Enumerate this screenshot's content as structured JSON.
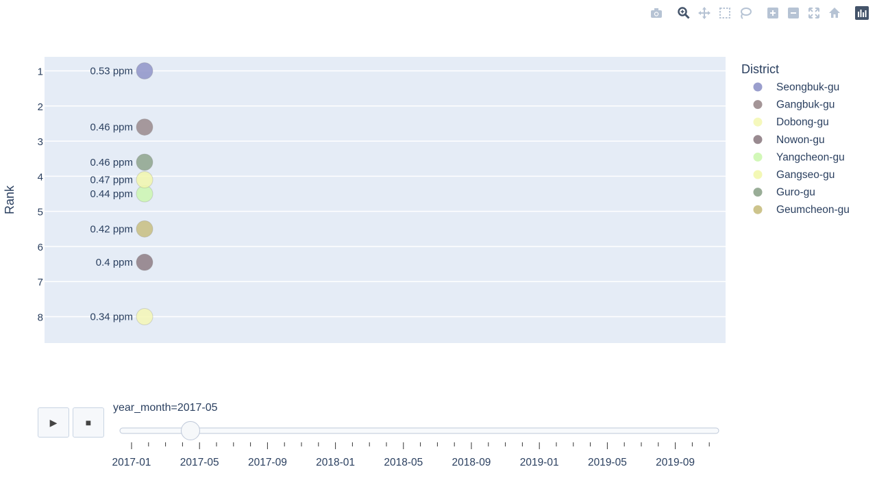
{
  "modebar": {
    "icons": [
      "camera-icon",
      "zoom-icon",
      "pan-icon",
      "box-select-icon",
      "lasso-icon",
      "zoom-in-icon",
      "zoom-out-icon",
      "autoscale-icon",
      "reset-axes-icon",
      "plotly-logo-icon"
    ]
  },
  "legend": {
    "title": "District"
  },
  "slider": {
    "label": "year_month=2017-05",
    "current_value": "2017-05",
    "position_fraction": 0.1154,
    "ticks": [
      "2017-01",
      "2017-05",
      "2017-09",
      "2018-01",
      "2018-05",
      "2018-09",
      "2019-01",
      "2019-05",
      "2019-09"
    ],
    "play_icon": "▶",
    "stop_icon": "■"
  },
  "chart_data": {
    "type": "scatter",
    "frame": "2017-05",
    "ylabel": "Rank",
    "yticks": [
      1,
      2,
      3,
      4,
      5,
      6,
      7,
      8
    ],
    "ylim": [
      0.6,
      8.75
    ],
    "yreversed": true,
    "grid": true,
    "legend_placement": "right",
    "series": [
      {
        "name": "Seongbuk-gu",
        "rank": 1.0,
        "value": 0.53,
        "label": "0.53 ppm",
        "color": "#8f94c8"
      },
      {
        "name": "Gangbuk-gu",
        "rank": 2.6,
        "value": 0.46,
        "label": "0.46 ppm",
        "color": "#9a8a8c"
      },
      {
        "name": "Dobong-gu",
        "rank": 8.0,
        "value": 0.34,
        "label": "0.34 ppm",
        "color": "#f4f7b5"
      },
      {
        "name": "Nowon-gu",
        "rank": 6.45,
        "value": 0.4,
        "label": "0.4 ppm",
        "color": "#8e7d84"
      },
      {
        "name": "Yangcheon-gu",
        "rank": 4.5,
        "value": 0.44,
        "label": "0.44 ppm",
        "color": "#cdf7b0"
      },
      {
        "name": "Gangseo-gu",
        "rank": 4.1,
        "value": 0.47,
        "label": "0.47 ppm",
        "color": "#f2f7ad"
      },
      {
        "name": "Guro-gu",
        "rank": 3.6,
        "value": 0.46,
        "label": "0.46 ppm",
        "color": "#8ea48c"
      },
      {
        "name": "Geumcheon-gu",
        "rank": 5.5,
        "value": 0.42,
        "label": "0.42 ppm",
        "color": "#c8be80"
      }
    ]
  }
}
